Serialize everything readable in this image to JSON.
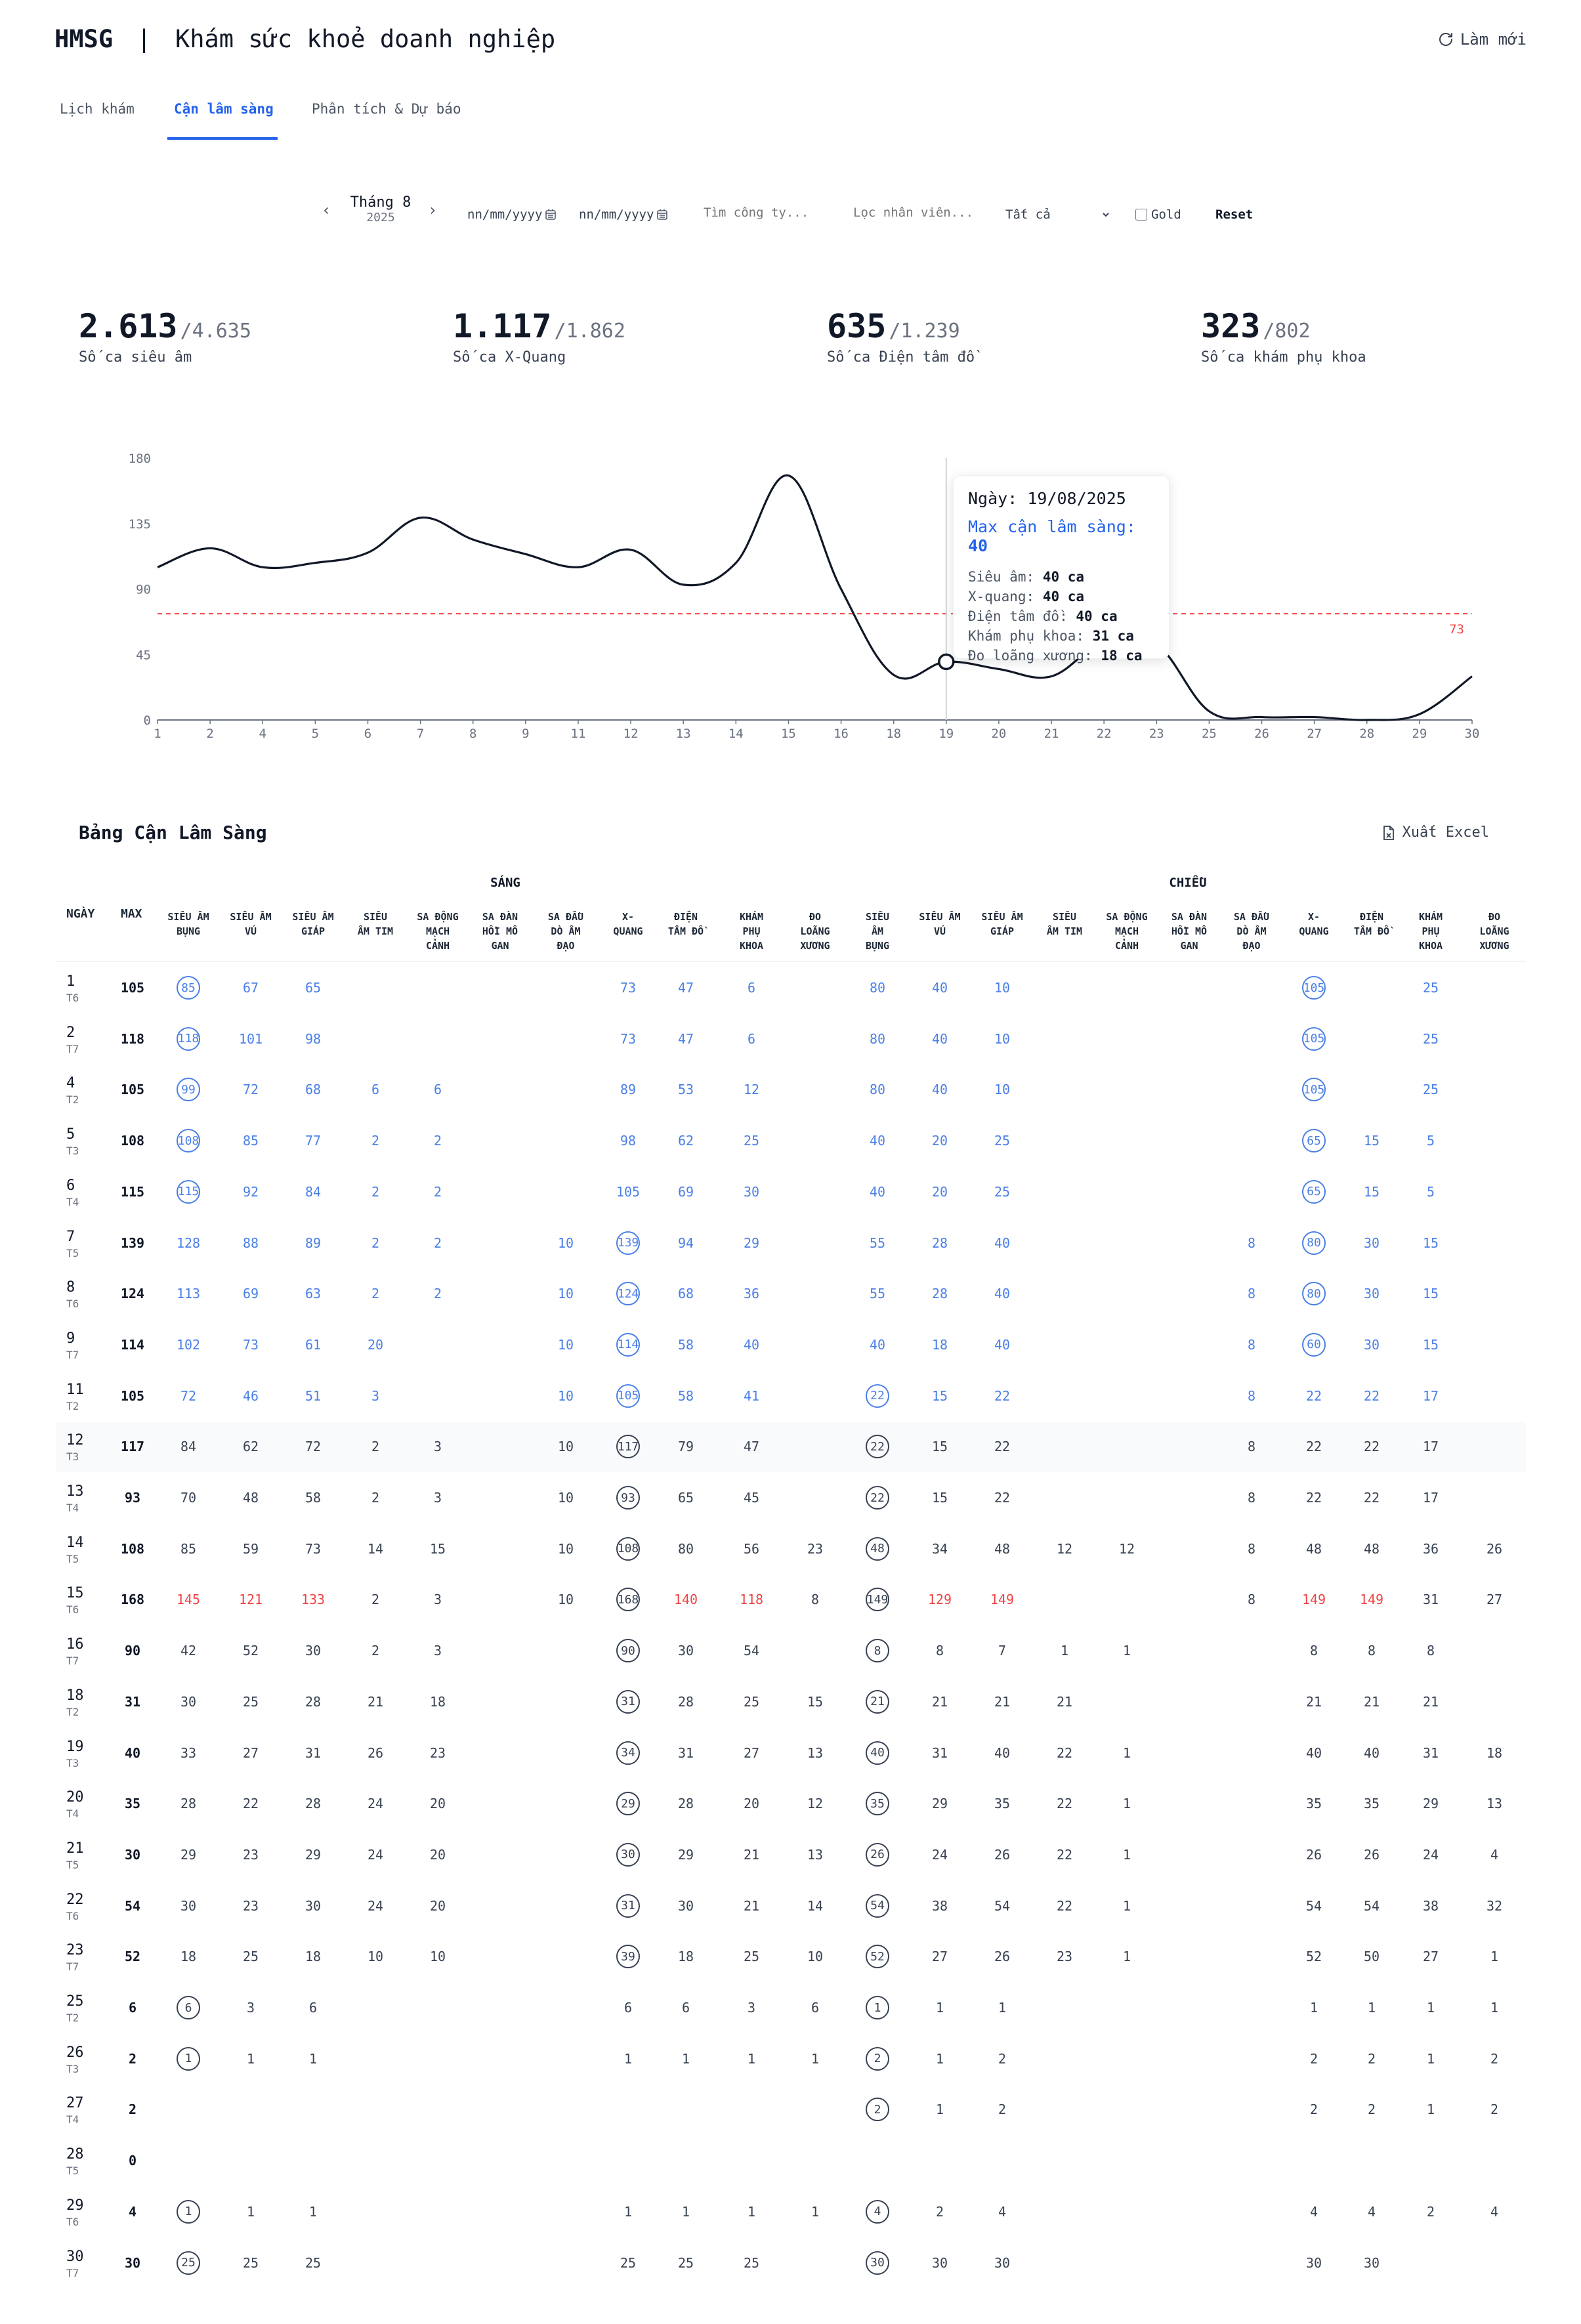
{
  "header": {
    "brand": "HMSG",
    "separator": "|",
    "title": "Khám sức khoẻ doanh nghiệp",
    "refresh_label": "Làm mới"
  },
  "tabs": [
    {
      "label": "Lịch khám",
      "active": false
    },
    {
      "label": "Cận lâm sàng",
      "active": true
    },
    {
      "label": "Phân tích & Dự báo",
      "active": false
    }
  ],
  "filters": {
    "month_label": "Tháng 8",
    "month_year": "2025",
    "date_from": "nn/mm/yyyy",
    "date_to": "nn/mm/yyyy",
    "company_placeholder": "Tìm công ty...",
    "employee_placeholder": "Lọc nhân viên...",
    "select_value": "Tất cả",
    "gold_label": "Gold",
    "gold_checked": false,
    "reset_label": "Reset"
  },
  "kpis": [
    {
      "value": "2.613",
      "total": "/4.635",
      "label": "Số ca siêu âm"
    },
    {
      "value": "1.117",
      "total": "/1.862",
      "label": "Số ca X-Quang"
    },
    {
      "value": "635",
      "total": "/1.239",
      "label": "Số ca Điện tâm đồ"
    },
    {
      "value": "323",
      "total": "/802",
      "label": "Số ca khám phụ khoa"
    }
  ],
  "chart_data": {
    "type": "line",
    "x": [
      "1",
      "2",
      "4",
      "5",
      "6",
      "7",
      "8",
      "9",
      "11",
      "12",
      "13",
      "14",
      "15",
      "16",
      "18",
      "19",
      "20",
      "21",
      "22",
      "23",
      "25",
      "26",
      "27",
      "28",
      "29",
      "30"
    ],
    "series": [
      {
        "values": [
          105,
          118,
          105,
          108,
          115,
          139,
          124,
          114,
          105,
          117,
          93,
          108,
          168,
          90,
          31,
          40,
          35,
          30,
          54,
          52,
          6,
          2,
          2,
          0,
          4,
          30
        ]
      }
    ],
    "ylim": [
      0,
      180
    ],
    "yticks": [
      "0",
      "45",
      "90",
      "135",
      "180"
    ],
    "threshold": 73,
    "threshold_label": "73",
    "highlight_index": 15,
    "colors": {
      "line": "#111827",
      "threshold": "#ef4444",
      "axis": "#9ca3af"
    }
  },
  "tooltip": {
    "date_label": "Ngày:",
    "date_value": "19/08/2025",
    "max_label": "Max cận lâm sàng:",
    "max_value": "40",
    "lines": [
      {
        "label": "Siêu âm:",
        "value": "40 ca"
      },
      {
        "label": "X-quang:",
        "value": "40 ca"
      },
      {
        "label": "Điện tâm đồ:",
        "value": "40 ca"
      },
      {
        "label": "Khám phụ khoa:",
        "value": "31 ca"
      },
      {
        "label": "Đo loãng xương:",
        "value": "18 ca"
      }
    ]
  },
  "table": {
    "title": "Bảng Cận Lâm Sàng",
    "export_label": "Xuất Excel",
    "col_day": "NGÀY",
    "col_max": "MAX",
    "group_morning": "SÁNG",
    "group_afternoon": "CHIỀU",
    "headers_morning": [
      [
        "SIÊU ÂM",
        "BỤNG"
      ],
      [
        "SIÊU ÂM",
        "VÚ"
      ],
      [
        "SIÊU ÂM",
        "GIÁP"
      ],
      [
        "SIÊU",
        "ÂM TIM"
      ],
      [
        "SA ĐỘNG",
        "MẠCH",
        "CẢNH"
      ],
      [
        "SA ĐÀN",
        "HỒI MÔ",
        "GAN"
      ],
      [
        "SA ĐẦU",
        "DÒ ÂM",
        "ĐẠO"
      ],
      [
        "X-",
        "QUANG"
      ],
      [
        "ĐIỆN",
        "TÂM ĐỒ"
      ],
      [
        "KHÁM",
        "PHỤ",
        "KHOA"
      ],
      [
        "ĐO",
        "LOÃNG",
        "XƯƠNG"
      ]
    ],
    "headers_afternoon": [
      [
        "SIÊU",
        "ÂM",
        "BỤNG"
      ],
      [
        "SIÊU ÂM",
        "VÚ"
      ],
      [
        "SIÊU ÂM",
        "GIÁP"
      ],
      [
        "SIÊU",
        "ÂM TIM"
      ],
      [
        "SA ĐỘNG",
        "MẠCH",
        "CẢNH"
      ],
      [
        "SA ĐÀN",
        "HỒI MÔ",
        "GAN"
      ],
      [
        "SA ĐẦU",
        "DÒ ÂM",
        "ĐẠO"
      ],
      [
        "X-",
        "QUANG"
      ],
      [
        "ĐIỆN",
        "TÂM ĐỒ"
      ],
      [
        "KHÁM",
        "PHỤ",
        "KHOA"
      ],
      [
        "ĐO",
        "LOÃNG",
        "XƯƠNG"
      ]
    ],
    "rows": [
      {
        "day": "1",
        "dow": "T6",
        "max": "105",
        "tone": "blue",
        "cells": [
          "85",
          "67",
          "65",
          "",
          "",
          "",
          "",
          "73",
          "47",
          "6",
          "",
          "80",
          "40",
          "10",
          "",
          "",
          "",
          "",
          "105",
          "",
          "25",
          ""
        ],
        "circles": [
          0,
          18
        ]
      },
      {
        "day": "2",
        "dow": "T7",
        "max": "118",
        "tone": "blue",
        "cells": [
          "118",
          "101",
          "98",
          "",
          "",
          "",
          "",
          "73",
          "47",
          "6",
          "",
          "80",
          "40",
          "10",
          "",
          "",
          "",
          "",
          "105",
          "",
          "25",
          ""
        ],
        "circles": [
          0,
          18
        ]
      },
      {
        "day": "4",
        "dow": "T2",
        "max": "105",
        "tone": "blue",
        "cells": [
          "99",
          "72",
          "68",
          "6",
          "6",
          "",
          "",
          "89",
          "53",
          "12",
          "",
          "80",
          "40",
          "10",
          "",
          "",
          "",
          "",
          "105",
          "",
          "25",
          ""
        ],
        "circles": [
          0,
          18
        ]
      },
      {
        "day": "5",
        "dow": "T3",
        "max": "108",
        "tone": "blue",
        "cells": [
          "108",
          "85",
          "77",
          "2",
          "2",
          "",
          "",
          "98",
          "62",
          "25",
          "",
          "40",
          "20",
          "25",
          "",
          "",
          "",
          "",
          "65",
          "15",
          "5",
          ""
        ],
        "circles": [
          0,
          18
        ]
      },
      {
        "day": "6",
        "dow": "T4",
        "max": "115",
        "tone": "blue",
        "cells": [
          "115",
          "92",
          "84",
          "2",
          "2",
          "",
          "",
          "105",
          "69",
          "30",
          "",
          "40",
          "20",
          "25",
          "",
          "",
          "",
          "",
          "65",
          "15",
          "5",
          ""
        ],
        "circles": [
          0,
          18
        ]
      },
      {
        "day": "7",
        "dow": "T5",
        "max": "139",
        "tone": "blue",
        "cells": [
          "128",
          "88",
          "89",
          "2",
          "2",
          "",
          "10",
          "139",
          "94",
          "29",
          "",
          "55",
          "28",
          "40",
          "",
          "",
          "",
          "8",
          "80",
          "30",
          "15",
          ""
        ],
        "circles": [
          7,
          18
        ]
      },
      {
        "day": "8",
        "dow": "T6",
        "max": "124",
        "tone": "blue",
        "cells": [
          "113",
          "69",
          "63",
          "2",
          "2",
          "",
          "10",
          "124",
          "68",
          "36",
          "",
          "55",
          "28",
          "40",
          "",
          "",
          "",
          "8",
          "80",
          "30",
          "15",
          ""
        ],
        "circles": [
          7,
          18
        ]
      },
      {
        "day": "9",
        "dow": "T7",
        "max": "114",
        "tone": "blue",
        "cells": [
          "102",
          "73",
          "61",
          "20",
          "",
          "",
          "10",
          "114",
          "58",
          "40",
          "",
          "40",
          "18",
          "40",
          "",
          "",
          "",
          "8",
          "60",
          "30",
          "15",
          ""
        ],
        "circles": [
          7,
          18
        ]
      },
      {
        "day": "11",
        "dow": "T2",
        "max": "105",
        "tone": "blue",
        "cells": [
          "72",
          "46",
          "51",
          "3",
          "",
          "",
          "10",
          "105",
          "58",
          "41",
          "",
          "22",
          "15",
          "22",
          "",
          "",
          "",
          "8",
          "22",
          "22",
          "17",
          ""
        ],
        "circles": [
          7,
          11
        ]
      },
      {
        "day": "12",
        "dow": "T3",
        "max": "117",
        "tone": "dark",
        "highlight": true,
        "cells": [
          "84",
          "62",
          "72",
          "2",
          "3",
          "",
          "10",
          "117",
          "79",
          "47",
          "",
          "22",
          "15",
          "22",
          "",
          "",
          "",
          "8",
          "22",
          "22",
          "17",
          ""
        ],
        "circles": [
          7,
          11
        ]
      },
      {
        "day": "13",
        "dow": "T4",
        "max": "93",
        "tone": "dark",
        "cells": [
          "70",
          "48",
          "58",
          "2",
          "3",
          "",
          "10",
          "93",
          "65",
          "45",
          "",
          "22",
          "15",
          "22",
          "",
          "",
          "",
          "8",
          "22",
          "22",
          "17",
          ""
        ],
        "circles": [
          7,
          11
        ]
      },
      {
        "day": "14",
        "dow": "T5",
        "max": "108",
        "tone": "dark",
        "cells": [
          "85",
          "59",
          "73",
          "14",
          "15",
          "",
          "10",
          "108",
          "80",
          "56",
          "23",
          "48",
          "34",
          "48",
          "12",
          "12",
          "",
          "8",
          "48",
          "48",
          "36",
          "26"
        ],
        "circles": [
          7,
          11
        ]
      },
      {
        "day": "15",
        "dow": "T6",
        "max": "168",
        "tone": "dark",
        "red": [
          0,
          1,
          2,
          8,
          9,
          12,
          13,
          18,
          19
        ],
        "cells": [
          "145",
          "121",
          "133",
          "2",
          "3",
          "",
          "10",
          "168",
          "140",
          "118",
          "8",
          "149",
          "129",
          "149",
          "",
          "",
          "",
          "8",
          "149",
          "149",
          "31",
          "27"
        ],
        "circles": [
          7,
          11
        ]
      },
      {
        "day": "16",
        "dow": "T7",
        "max": "90",
        "tone": "dark",
        "cells": [
          "42",
          "52",
          "30",
          "2",
          "3",
          "",
          "",
          "90",
          "30",
          "54",
          "",
          "8",
          "8",
          "7",
          "1",
          "1",
          "",
          "",
          "8",
          "8",
          "8",
          ""
        ],
        "circles": [
          7,
          11
        ]
      },
      {
        "day": "18",
        "dow": "T2",
        "max": "31",
        "tone": "dark",
        "cells": [
          "30",
          "25",
          "28",
          "21",
          "18",
          "",
          "",
          "31",
          "28",
          "25",
          "15",
          "21",
          "21",
          "21",
          "21",
          "",
          "",
          "",
          "21",
          "21",
          "21",
          ""
        ],
        "circles": [
          7,
          11
        ]
      },
      {
        "day": "19",
        "dow": "T3",
        "max": "40",
        "tone": "dark",
        "cells": [
          "33",
          "27",
          "31",
          "26",
          "23",
          "",
          "",
          "34",
          "31",
          "27",
          "13",
          "40",
          "31",
          "40",
          "22",
          "1",
          "",
          "",
          "40",
          "40",
          "31",
          "18"
        ],
        "circles": [
          7,
          11
        ]
      },
      {
        "day": "20",
        "dow": "T4",
        "max": "35",
        "tone": "dark",
        "cells": [
          "28",
          "22",
          "28",
          "24",
          "20",
          "",
          "",
          "29",
          "28",
          "20",
          "12",
          "35",
          "29",
          "35",
          "22",
          "1",
          "",
          "",
          "35",
          "35",
          "29",
          "13"
        ],
        "circles": [
          7,
          11
        ]
      },
      {
        "day": "21",
        "dow": "T5",
        "max": "30",
        "tone": "dark",
        "cells": [
          "29",
          "23",
          "29",
          "24",
          "20",
          "",
          "",
          "30",
          "29",
          "21",
          "13",
          "26",
          "24",
          "26",
          "22",
          "1",
          "",
          "",
          "26",
          "26",
          "24",
          "4"
        ],
        "circles": [
          7,
          11
        ]
      },
      {
        "day": "22",
        "dow": "T6",
        "max": "54",
        "tone": "dark",
        "cells": [
          "30",
          "23",
          "30",
          "24",
          "20",
          "",
          "",
          "31",
          "30",
          "21",
          "14",
          "54",
          "38",
          "54",
          "22",
          "1",
          "",
          "",
          "54",
          "54",
          "38",
          "32"
        ],
        "circles": [
          7,
          11
        ]
      },
      {
        "day": "23",
        "dow": "T7",
        "max": "52",
        "tone": "dark",
        "cells": [
          "18",
          "25",
          "18",
          "10",
          "10",
          "",
          "",
          "39",
          "18",
          "25",
          "10",
          "52",
          "27",
          "26",
          "23",
          "1",
          "",
          "",
          "52",
          "50",
          "27",
          "1"
        ],
        "circles": [
          7,
          11
        ]
      },
      {
        "day": "25",
        "dow": "T2",
        "max": "6",
        "tone": "dark",
        "cells": [
          "6",
          "3",
          "6",
          "",
          "",
          "",
          "",
          "6",
          "6",
          "3",
          "6",
          "1",
          "1",
          "1",
          "",
          "",
          "",
          "",
          "1",
          "1",
          "1",
          "1"
        ],
        "circles": [
          0,
          11
        ]
      },
      {
        "day": "26",
        "dow": "T3",
        "max": "2",
        "tone": "dark",
        "cells": [
          "1",
          "1",
          "1",
          "",
          "",
          "",
          "",
          "1",
          "1",
          "1",
          "1",
          "2",
          "1",
          "2",
          "",
          "",
          "",
          "",
          "2",
          "2",
          "1",
          "2"
        ],
        "circles": [
          0,
          11
        ]
      },
      {
        "day": "27",
        "dow": "T4",
        "max": "2",
        "tone": "dark",
        "cells": [
          "",
          "",
          "",
          "",
          "",
          "",
          "",
          "",
          "",
          "",
          "",
          "2",
          "1",
          "2",
          "",
          "",
          "",
          "",
          "2",
          "2",
          "1",
          "2"
        ],
        "circles": [
          11
        ]
      },
      {
        "day": "28",
        "dow": "T5",
        "max": "0",
        "tone": "dark",
        "cells": [
          "",
          "",
          "",
          "",
          "",
          "",
          "",
          "",
          "",
          "",
          "",
          "",
          "",
          "",
          "",
          "",
          "",
          "",
          "",
          "",
          "",
          ""
        ],
        "circles": []
      },
      {
        "day": "29",
        "dow": "T6",
        "max": "4",
        "tone": "dark",
        "cells": [
          "1",
          "1",
          "1",
          "",
          "",
          "",
          "",
          "1",
          "1",
          "1",
          "1",
          "4",
          "2",
          "4",
          "",
          "",
          "",
          "",
          "4",
          "4",
          "2",
          "4"
        ],
        "circles": [
          0,
          11
        ]
      },
      {
        "day": "30",
        "dow": "T7",
        "max": "30",
        "tone": "dark",
        "cells": [
          "25",
          "25",
          "25",
          "",
          "",
          "",
          "",
          "25",
          "25",
          "25",
          "",
          "30",
          "30",
          "30",
          "",
          "",
          "",
          "",
          "30",
          "30",
          "",
          ""
        ],
        "circles": [
          0,
          11
        ]
      }
    ]
  }
}
